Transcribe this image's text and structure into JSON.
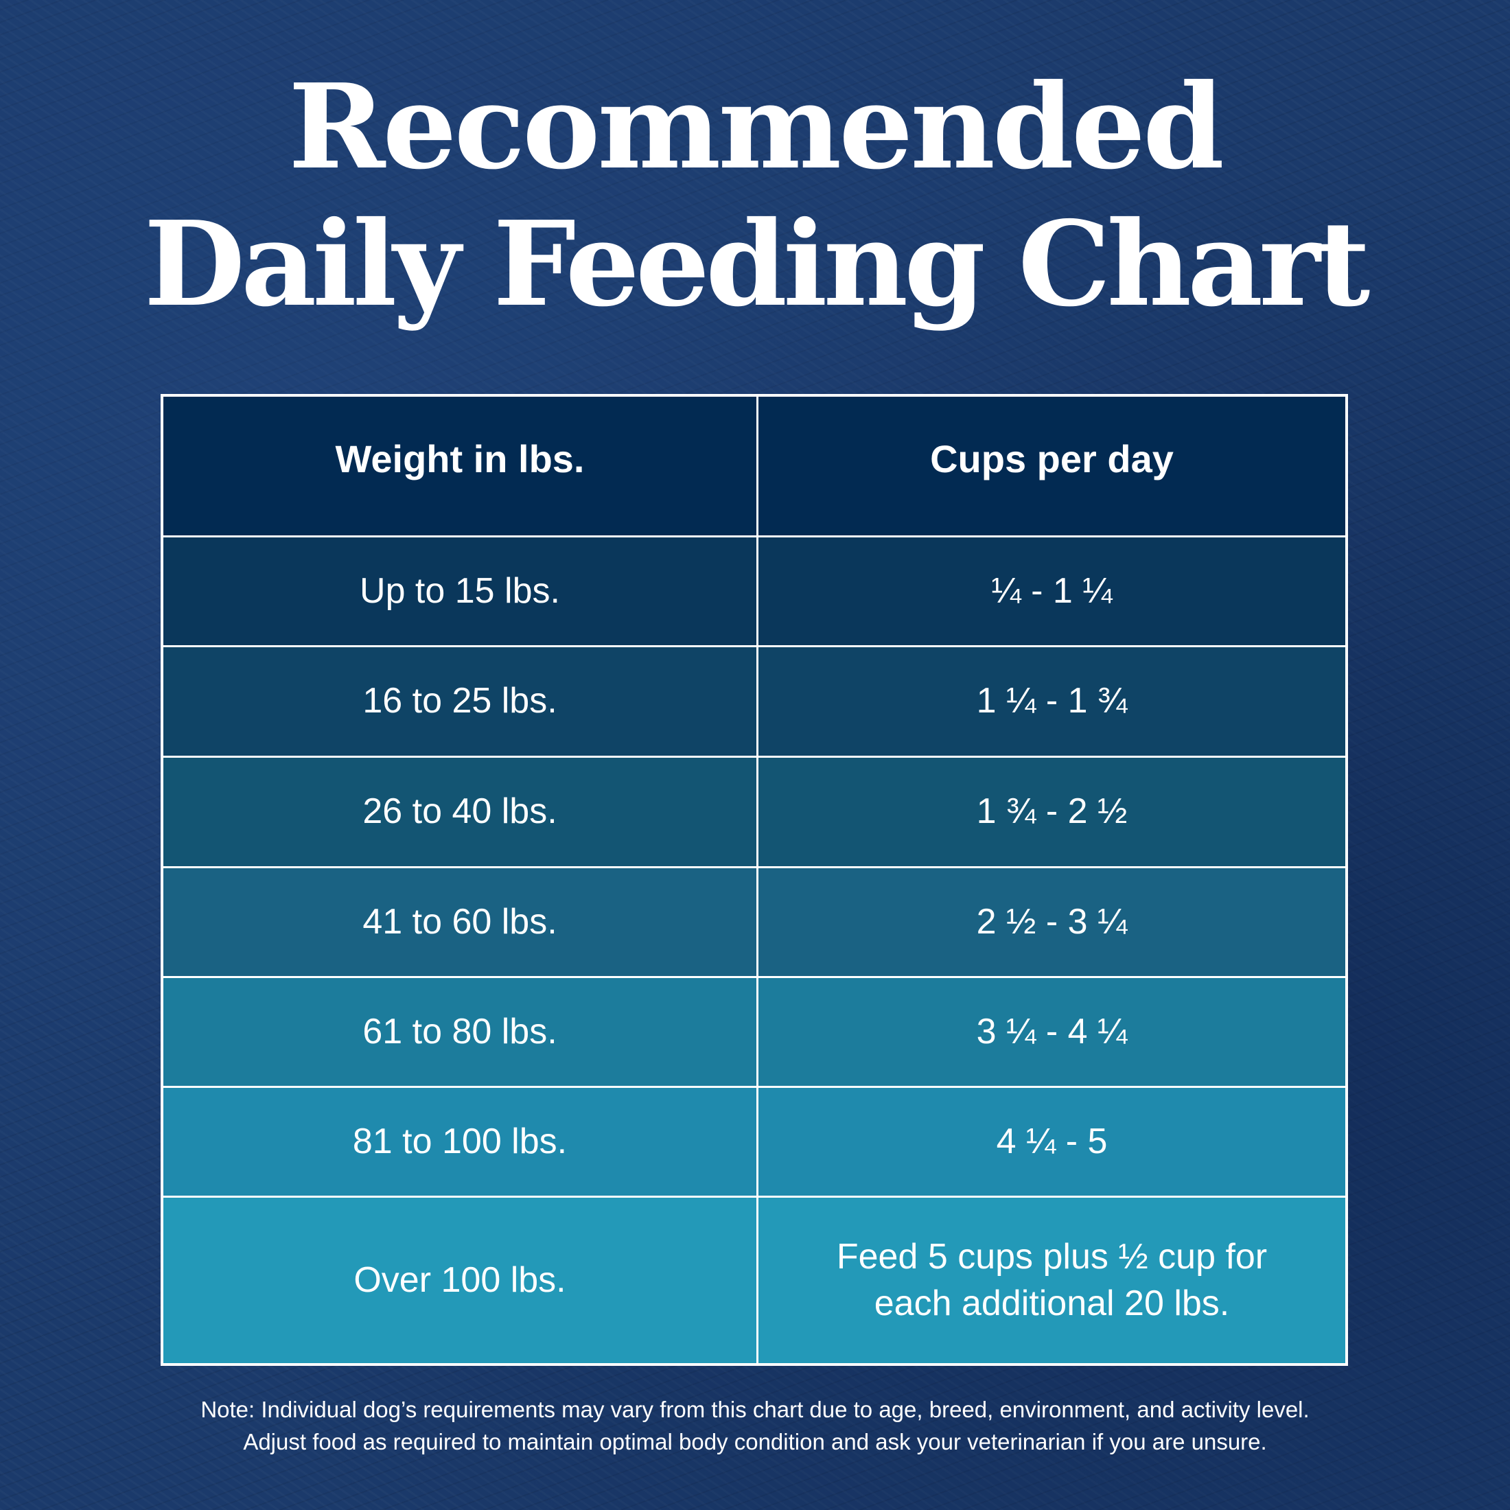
{
  "title": {
    "line1": "Recommended",
    "line2": "Daily Feeding Chart"
  },
  "table": {
    "headers": [
      "Weight in lbs.",
      "Cups per day"
    ],
    "rows": [
      {
        "weight": "Up to 15 lbs.",
        "cups": "¼  - 1 ¼",
        "color": "#0a375b"
      },
      {
        "weight": "16 to 25 lbs.",
        "cups": "1 ¼ - 1 ¾",
        "color": "#0f4466"
      },
      {
        "weight": "26 to 40 lbs.",
        "cups": "1 ¾  - 2 ½",
        "color": "#135573"
      },
      {
        "weight": "41 to 60 lbs.",
        "cups": "2 ½ - 3 ¼",
        "color": "#1a6283"
      },
      {
        "weight": "61 to 80 lbs.",
        "cups": "3 ¼ - 4 ¼",
        "color": "#1c7c9c"
      },
      {
        "weight": "81 to 100 lbs.",
        "cups": "4 ¼  - 5",
        "color": "#1f8aad"
      },
      {
        "weight": "Over 100 lbs.",
        "cups": "Feed 5 cups plus ½ cup for each additional 20 lbs.",
        "color": "#2399b8"
      }
    ],
    "header_color": "#022a52"
  },
  "note": {
    "line1": "Note: Individual dog’s requirements may vary from this chart due to age, breed, environment, and activity level.",
    "line2": "Adjust food as required to maintain optimal body condition and ask your veterinarian if you are unsure."
  }
}
